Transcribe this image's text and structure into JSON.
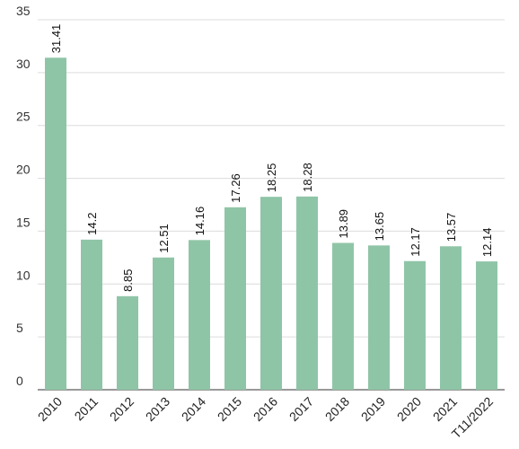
{
  "chart_data": {
    "type": "bar",
    "categories": [
      "2010",
      "2011",
      "2012",
      "2013",
      "2014",
      "2015",
      "2016",
      "2017",
      "2018",
      "2019",
      "2020",
      "2021",
      "T11/2022"
    ],
    "values": [
      31.41,
      14.2,
      8.85,
      12.51,
      14.16,
      17.26,
      18.25,
      18.28,
      13.89,
      13.65,
      12.17,
      13.57,
      12.14
    ],
    "data_labels": [
      "31.41",
      "14.2",
      "8.85",
      "12.51",
      "14.16",
      "17.26",
      "18.25",
      "18.28",
      "13.89",
      "13.65",
      "12.17",
      "13.57",
      "12.14"
    ],
    "yticks": [
      "0",
      "5",
      "10",
      "15",
      "20",
      "25",
      "30",
      "35"
    ],
    "ylim": [
      0,
      35
    ],
    "title": "",
    "xlabel": "",
    "ylabel": "",
    "grid": true,
    "legend": "none",
    "bar_color": "#8fc5a7"
  }
}
